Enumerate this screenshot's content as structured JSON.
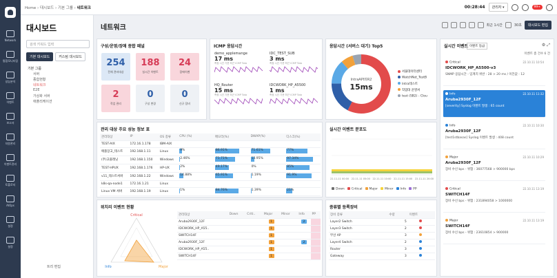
{
  "nav": {
    "items": [
      "Network",
      "통합모니터링",
      "성능분석",
      "이벤트",
      "보고서",
      "자원관리",
      "이벤트관리",
      "토폴로지",
      "AIOps",
      "설정",
      "설정"
    ]
  },
  "header": {
    "breadcrumb": [
      "Home",
      "대시보드",
      "기본 그룹",
      "네트워크"
    ],
    "clock": "00:28:44",
    "user": "관리자 ▾",
    "badge": "99+"
  },
  "sidebar": {
    "title": "대시보드",
    "search_placeholder": "검색 키워드 입력",
    "tabs": [
      "기본 대시보드",
      "커스텀 대시보드"
    ],
    "tree": [
      {
        "label": "기본 그룹",
        "level": 0
      },
      {
        "label": "서버",
        "level": 1
      },
      {
        "label": "종합현황",
        "level": 1
      },
      {
        "label": "네트워크",
        "level": 1,
        "selected": true
      },
      {
        "label": "E2E",
        "level": 1
      },
      {
        "label": "가상화 서버",
        "level": 1
      },
      {
        "label": "애플리케이션",
        "level": 1
      }
    ],
    "tree_edit": "트리 편집"
  },
  "main": {
    "title": "네트워크",
    "time_range": "최근 1시간",
    "refresh": "30초",
    "edit_button": "대시보드 편집"
  },
  "health": {
    "title": "구성/운영/장애 종합 패널",
    "cards": [
      {
        "value": "254",
        "label": "전체 관리대상",
        "color": "#dce8f6",
        "text_color": "#2f5fa8"
      },
      {
        "value": "188",
        "label": "실시간 이벤트",
        "color": "#f9d6dc",
        "text_color": "#d63b56"
      },
      {
        "value": "24",
        "label": "장애이벤",
        "color": "#f9d6dc",
        "text_color": "#d63b56"
      },
      {
        "value": "2",
        "label": "작업 관리",
        "color": "#f9d6dc",
        "text_color": "#d63b56"
      },
      {
        "value": "0",
        "label": "구성 변경",
        "color": "#eef1f5",
        "text_color": "#2f5fa8"
      },
      {
        "value": "0",
        "label": "신규 장비",
        "color": "#eef1f5",
        "text_color": "#2f5fa8"
      }
    ]
  },
  "icmp": {
    "title": "ICMP 응답시간",
    "items": [
      {
        "name": "demo_applemange",
        "value": "17 ms"
      },
      {
        "name": "IDC_TEST_SUB",
        "value": "3 ms"
      },
      {
        "name": "HQ_Router",
        "value": "15 ms"
      },
      {
        "name": "IDCWORK_HP_A5500",
        "value": "1 ms"
      }
    ],
    "sub": "측정 시간 기준 최근 ICMP Tota"
  },
  "donut": {
    "title": "응답시간 (서버스 대기) Top5",
    "center_name": "IntraAPI의R2",
    "center_value": "15ms",
    "items": [
      {
        "label": "서울데이터센터",
        "color": "#e24b4b"
      },
      {
        "label": "WatchNet_TestB",
        "color": "#2f5fa8"
      },
      {
        "label": "Intra테스트",
        "color": "#5aa9e6"
      },
      {
        "label": "작업대 운영서",
        "color": "#f2a13b"
      },
      {
        "label": "test (SB2) - Clou",
        "color": "#9aa4b1"
      }
    ]
  },
  "events_panel": {
    "title": "실시간 이벤트",
    "filter": "이벤트 등급",
    "count_text": "이벤트 총 건수 6 건",
    "events": [
      {
        "sev": "Critical",
        "sev_color": "#e24b4b",
        "device": "IDCWORK_HP_A5500-v3",
        "msg": "SNMP 응답시간 - 임계치 위반 : 28 > 20 ms / 이전값 : 12",
        "time": "22.10.11 10:54"
      },
      {
        "sev": "Info",
        "sev_color": "#ffffff",
        "device": "Aruba2930F_12F",
        "msg": "[severity] Syslog 이벤트 발생 : 65 count",
        "time": "22.10.11 11:32",
        "highlight": true
      },
      {
        "sev": "Info",
        "sev_color": "#2a82d8",
        "device": "Aruba2930F_12F",
        "msg": "[test1stbasas] Syslog 이벤트 발생 : 408 count",
        "time": "22.10.11 10:30"
      },
      {
        "sev": "Major",
        "sev_color": "#f2a13b",
        "device": "Aruba2930F_12F",
        "msg": "장비 수신 bps - 위험 : 36077568 > 900000 bps",
        "time": "22.10.11 10:29"
      },
      {
        "sev": "Critical",
        "sev_color": "#e24b4b",
        "device": "SWITCH14F",
        "msg": "장비 수신 bps - 위험 : 231894058 > 1000000",
        "time": "22.10.11 13:19"
      },
      {
        "sev": "Major",
        "sev_color": "#f2a13b",
        "device": "SWITCH14F",
        "msg": "장비 수신 bps - 위험 : 23610854 > 900000",
        "time": "22.10.11 13:19"
      }
    ]
  },
  "perf": {
    "title": "관리 대상 주요 성능 정보 표",
    "columns": [
      "관리대상",
      "IP",
      "OS 종류",
      "CPU (%)",
      "메모리(%)",
      "DWAP(%)",
      "디스크(%)"
    ],
    "rows": [
      [
        "TEST-AIX",
        "172.16.1.178",
        "IBM-AIX",
        "",
        "",
        "",
        ""
      ],
      [
        "애플망고_테스트",
        "192.168.1.11",
        "Linux",
        "9%",
        "86.91%",
        "71.61%",
        "77%"
      ],
      [
        "(주)고플래닛",
        "192.168.1.150",
        "Windows",
        "2.46%",
        "71.71%",
        "13.95%",
        "97.34%"
      ],
      [
        "TEST-HPUX",
        "192.168.1.176",
        "HP-UX",
        "2%",
        "49.17%",
        "0%",
        "85%"
      ],
      [
        "v11_테스트서버",
        "192.168.1.22",
        "Windows",
        "14.88%",
        "65.91%",
        "1.19%",
        "91.9%"
      ],
      [
        "k8s-qa-node1",
        "172.16.1.21",
        "Linux",
        "",
        "",
        "",
        ""
      ],
      [
        "Linux VM 서버",
        "192.168.1.19",
        "Linux",
        "1%",
        "84.76%",
        "1.39%",
        "21%"
      ]
    ],
    "bars": [
      [
        0,
        0,
        0,
        0
      ],
      [
        9,
        86.91,
        71.61,
        77
      ],
      [
        2.46,
        71.71,
        13.95,
        97.34
      ],
      [
        2,
        49.17,
        0,
        85
      ],
      [
        14.88,
        65.91,
        1.19,
        91.9
      ],
      [
        0,
        0,
        0,
        0
      ],
      [
        1,
        84.76,
        1.39,
        21
      ]
    ]
  },
  "distrib": {
    "title": "실시간 이벤트 분포도",
    "x_ticks": [
      "22-11-11 00:00",
      "22-11-11 05:00",
      "22-11-11 10:00",
      "22-11-11 15:00",
      "22-11-11 20:00"
    ],
    "legend": [
      {
        "label": "Down",
        "color": "#6e6e6e"
      },
      {
        "label": "Critical",
        "color": "#e24b4b"
      },
      {
        "label": "Major",
        "color": "#f2a13b"
      },
      {
        "label": "Minor",
        "color": "#f5d33b"
      },
      {
        "label": "Info",
        "color": "#2a82d8"
      },
      {
        "label": "PP",
        "color": "#9b6fd6"
      }
    ]
  },
  "matrix": {
    "title": "위치리 이벤트 현황",
    "tri_labels": [
      "Critical",
      "Info",
      "Major"
    ],
    "columns": [
      "관리대상",
      "Down",
      "Criti..",
      "Major",
      "Minor",
      "Info",
      "PP"
    ],
    "rows": [
      {
        "name": "Aruba2930F_12F",
        "major": "1",
        "info": "2"
      },
      {
        "name": "IDCWORK_HP_A55..",
        "major": "1",
        "info": ""
      },
      {
        "name": "SWITCH14F",
        "major": "1",
        "info": ""
      },
      {
        "name": "Aruba2930F_12F",
        "major": "1",
        "info": "2"
      },
      {
        "name": "IDCWORK_HP_A55..",
        "major": "1",
        "info": ""
      },
      {
        "name": "SWITCH14F",
        "major": "1",
        "info": ""
      }
    ]
  },
  "byType": {
    "title": "종류별 등록장비",
    "columns": [
      "장비 종류",
      "수량",
      "이벤트"
    ],
    "rows": [
      {
        "type": "Layer2 Switch",
        "count": "5",
        "color": "#e24b4b"
      },
      {
        "type": "Layer3 Switch",
        "count": "2",
        "color": "#e24b4b"
      },
      {
        "type": "무선 AP",
        "count": "3",
        "color": "#f2a13b"
      },
      {
        "type": "Layer4 Switch",
        "count": "2",
        "color": "#2a82d8"
      },
      {
        "type": "Router",
        "count": "3",
        "color": "#2a82d8"
      },
      {
        "type": "Gateway",
        "count": "3",
        "color": "#2a82d8"
      }
    ]
  }
}
